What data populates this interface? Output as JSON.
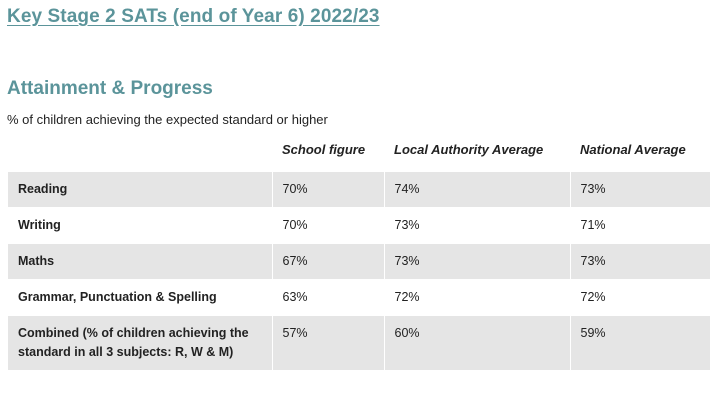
{
  "page": {
    "title": "Key Stage 2 SATs (end of Year 6) 2022/23",
    "section_title": "Attainment & Progress",
    "subtitle": "% of children achieving the expected standard or higher"
  },
  "table": {
    "headers": [
      "",
      "School figure",
      "Local Authority Average",
      "National Average"
    ],
    "rows": [
      {
        "subject": "Reading",
        "school": "70%",
        "local_authority": "74%",
        "national": "73%"
      },
      {
        "subject": "Writing",
        "school": "70%",
        "local_authority": "73%",
        "national": "71%"
      },
      {
        "subject": "Maths",
        "school": "67%",
        "local_authority": "73%",
        "national": "73%"
      },
      {
        "subject": "Grammar, Punctuation & Spelling",
        "school": "63%",
        "local_authority": "72%",
        "national": "72%"
      },
      {
        "subject": "Combined (% of children achieving the standard in all 3 subjects: R, W & M)",
        "school": "57%",
        "local_authority": "60%",
        "national": "59%"
      }
    ]
  },
  "colors": {
    "heading": "#5b949a",
    "row_shade": "#e5e5e5",
    "text": "#222222"
  }
}
